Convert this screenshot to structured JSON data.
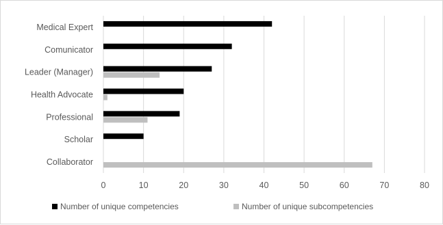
{
  "chart_data": {
    "type": "bar",
    "orientation": "horizontal",
    "categories": [
      "Medical Expert",
      "Comunicator",
      "Leader (Manager)",
      "Health Advocate",
      "Professional",
      "Scholar",
      "Collaborator"
    ],
    "series": [
      {
        "name": "Number of unique competencies",
        "color": "#000000",
        "values": [
          42,
          32,
          27,
          20,
          19,
          10,
          0
        ]
      },
      {
        "name": "Number of unique subcompetencies",
        "color": "#bfbfbf",
        "values": [
          0,
          0,
          14,
          1,
          11,
          0,
          67
        ]
      }
    ],
    "xlim": [
      0,
      80
    ],
    "xticks": [
      0,
      10,
      20,
      30,
      40,
      50,
      60,
      70,
      80
    ],
    "grid": true,
    "legend_position": "bottom"
  }
}
